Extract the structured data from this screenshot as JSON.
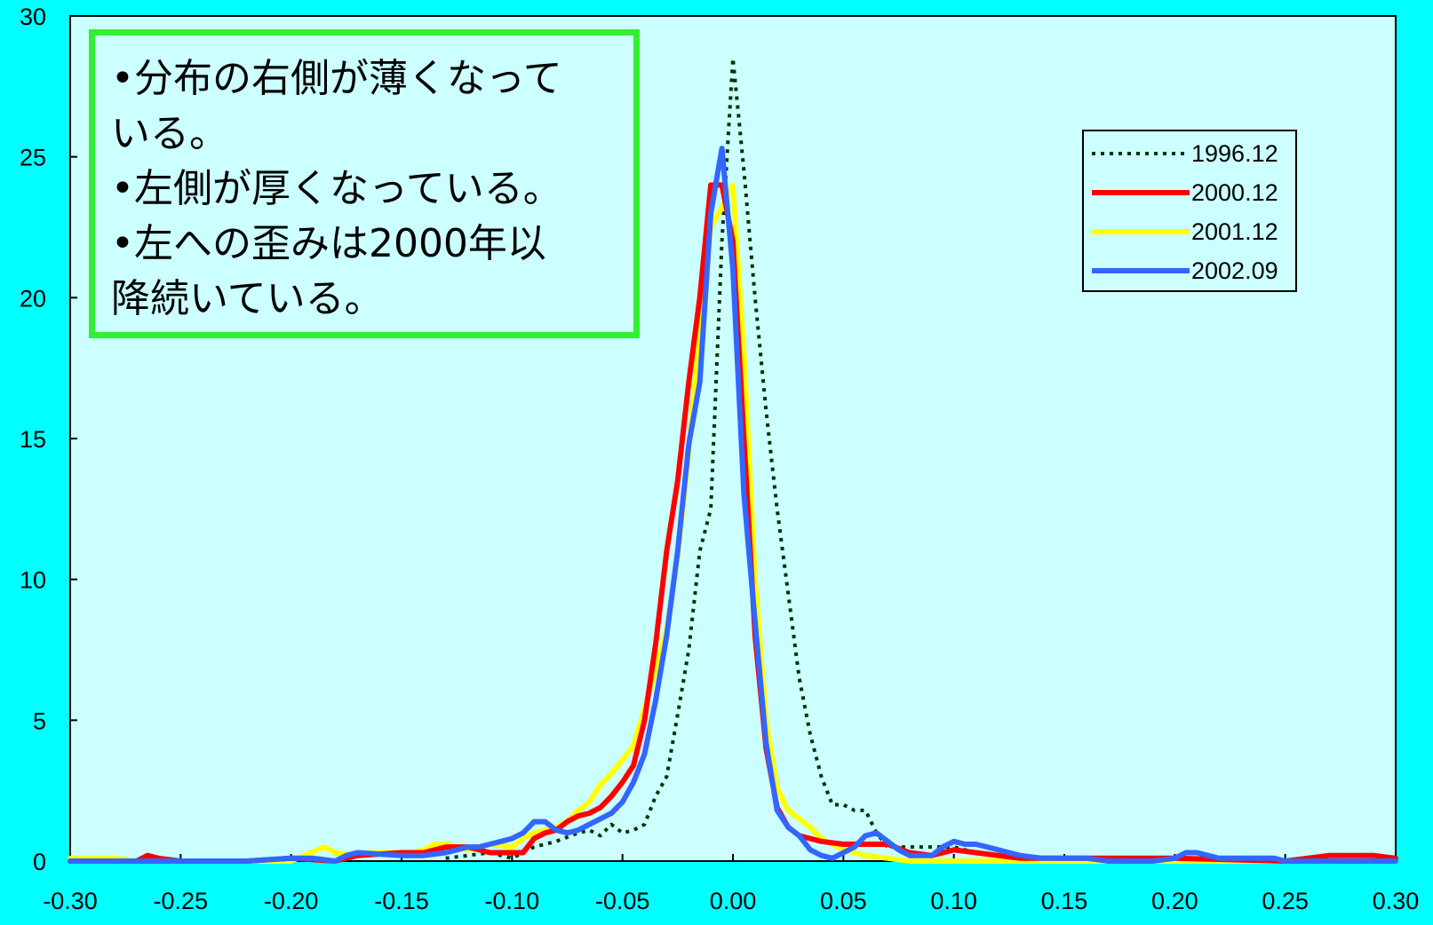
{
  "annotation": {
    "lines": [
      "•分布の右側が薄くなって",
      "いる。",
      "•左側が厚くなっている。",
      "•左への歪みは2000年以",
      "降続いている。"
    ],
    "border_color": "#33EE33"
  },
  "colors": {
    "background": "#00FFFF",
    "plot_area": "#CCFFFF"
  },
  "chart_data": {
    "type": "line",
    "title": "",
    "xlabel": "",
    "ylabel": "",
    "xlim": [
      -0.3,
      0.3
    ],
    "ylim": [
      0,
      30
    ],
    "x_ticks": [
      "-0.30",
      "-0.25",
      "-0.20",
      "-0.15",
      "-0.10",
      "-0.05",
      "0.00",
      "0.05",
      "0.10",
      "0.15",
      "0.20",
      "0.25",
      "0.30"
    ],
    "y_ticks": [
      "0",
      "5",
      "10",
      "15",
      "20",
      "25",
      "30"
    ],
    "grid": false,
    "legend_position": "top-right",
    "series": [
      {
        "name": "1996.12",
        "color": "#003300",
        "dash": "dotted",
        "x": [
          -0.13,
          -0.12,
          -0.11,
          -0.1,
          -0.09,
          -0.08,
          -0.07,
          -0.065,
          -0.06,
          -0.055,
          -0.05,
          -0.045,
          -0.04,
          -0.035,
          -0.03,
          -0.025,
          -0.02,
          -0.015,
          -0.01,
          -0.005,
          0.0,
          0.005,
          0.01,
          0.015,
          0.02,
          0.025,
          0.03,
          0.035,
          0.04,
          0.045,
          0.05,
          0.055,
          0.06,
          0.065,
          0.07,
          0.08,
          0.09,
          0.1,
          0.11,
          0.12,
          0.13,
          0.14,
          0.15,
          0.2
        ],
        "y": [
          0.1,
          0.2,
          0.3,
          0.1,
          0.5,
          0.7,
          1.0,
          1.1,
          0.9,
          1.3,
          1.0,
          1.1,
          1.3,
          2.3,
          3.0,
          5.2,
          7.5,
          11.0,
          12.5,
          22.0,
          28.5,
          24.5,
          20.0,
          16.0,
          12.5,
          9.5,
          6.5,
          4.5,
          3.0,
          2.0,
          2.0,
          1.8,
          1.8,
          1.0,
          0.5,
          0.5,
          0.5,
          0.5,
          0.3,
          0.2,
          0.1,
          0.1,
          0.0,
          0.0
        ]
      },
      {
        "name": "2000.12",
        "color": "#FF0000",
        "dash": "solid",
        "x": [
          -0.3,
          -0.27,
          -0.265,
          -0.26,
          -0.25,
          -0.22,
          -0.2,
          -0.18,
          -0.17,
          -0.15,
          -0.14,
          -0.13,
          -0.12,
          -0.11,
          -0.1,
          -0.095,
          -0.09,
          -0.085,
          -0.08,
          -0.075,
          -0.07,
          -0.065,
          -0.06,
          -0.055,
          -0.05,
          -0.045,
          -0.04,
          -0.035,
          -0.03,
          -0.025,
          -0.02,
          -0.015,
          -0.01,
          -0.005,
          0.0,
          0.005,
          0.01,
          0.015,
          0.02,
          0.025,
          0.03,
          0.035,
          0.04,
          0.05,
          0.06,
          0.07,
          0.08,
          0.09,
          0.1,
          0.11,
          0.12,
          0.13,
          0.15,
          0.2,
          0.25,
          0.27,
          0.29,
          0.3
        ],
        "y": [
          0,
          0,
          0.2,
          0.1,
          0,
          0,
          0.1,
          0,
          0.2,
          0.3,
          0.3,
          0.5,
          0.5,
          0.3,
          0.3,
          0.3,
          0.8,
          1.0,
          1.1,
          1.4,
          1.6,
          1.7,
          1.9,
          2.3,
          2.8,
          3.4,
          5.0,
          7.7,
          11.0,
          13.5,
          17.0,
          20.0,
          24.0,
          24.0,
          22.0,
          15.0,
          8.0,
          4.0,
          1.9,
          1.2,
          0.9,
          0.8,
          0.7,
          0.6,
          0.6,
          0.6,
          0.3,
          0.2,
          0.4,
          0.3,
          0.2,
          0.1,
          0.1,
          0.1,
          0,
          0.2,
          0.2,
          0.1
        ]
      },
      {
        "name": "2001.12",
        "color": "#FFFF00",
        "dash": "solid",
        "x": [
          -0.3,
          -0.28,
          -0.27,
          -0.25,
          -0.22,
          -0.2,
          -0.185,
          -0.18,
          -0.17,
          -0.165,
          -0.16,
          -0.155,
          -0.15,
          -0.145,
          -0.14,
          -0.135,
          -0.13,
          -0.125,
          -0.12,
          -0.11,
          -0.1,
          -0.095,
          -0.09,
          -0.085,
          -0.08,
          -0.075,
          -0.07,
          -0.065,
          -0.06,
          -0.055,
          -0.05,
          -0.045,
          -0.04,
          -0.035,
          -0.03,
          -0.025,
          -0.02,
          -0.015,
          -0.01,
          -0.005,
          0.0,
          0.005,
          0.01,
          0.015,
          0.02,
          0.025,
          0.03,
          0.035,
          0.04,
          0.05,
          0.06,
          0.07,
          0.08,
          0.1,
          0.15,
          0.2,
          0.25,
          0.3
        ],
        "y": [
          0.1,
          0.1,
          0,
          0,
          0,
          0,
          0.5,
          0.3,
          0.2,
          0.3,
          0.3,
          0.3,
          0.3,
          0.3,
          0.4,
          0.6,
          0.6,
          0.5,
          0.4,
          0.6,
          0.5,
          0.8,
          1.0,
          1.1,
          1.2,
          1.4,
          1.8,
          2.1,
          2.7,
          3.1,
          3.6,
          4.1,
          5.4,
          6.8,
          8.2,
          10.8,
          14.5,
          19.0,
          22.5,
          23.2,
          24.0,
          18.0,
          10.0,
          5.0,
          2.6,
          1.8,
          1.5,
          1.2,
          0.8,
          0.4,
          0.2,
          0.1,
          0,
          0,
          0,
          0,
          0,
          0
        ]
      },
      {
        "name": "2002.09",
        "color": "#3366FF",
        "dash": "solid",
        "x": [
          -0.3,
          -0.27,
          -0.25,
          -0.22,
          -0.2,
          -0.19,
          -0.18,
          -0.175,
          -0.17,
          -0.15,
          -0.14,
          -0.13,
          -0.125,
          -0.12,
          -0.115,
          -0.11,
          -0.105,
          -0.1,
          -0.095,
          -0.09,
          -0.085,
          -0.08,
          -0.075,
          -0.07,
          -0.065,
          -0.06,
          -0.055,
          -0.05,
          -0.045,
          -0.04,
          -0.035,
          -0.03,
          -0.025,
          -0.02,
          -0.015,
          -0.01,
          -0.005,
          0.0,
          0.005,
          0.01,
          0.015,
          0.02,
          0.025,
          0.03,
          0.035,
          0.04,
          0.045,
          0.05,
          0.055,
          0.06,
          0.065,
          0.07,
          0.075,
          0.08,
          0.09,
          0.095,
          0.1,
          0.105,
          0.11,
          0.115,
          0.12,
          0.125,
          0.13,
          0.14,
          0.15,
          0.16,
          0.17,
          0.18,
          0.19,
          0.2,
          0.205,
          0.21,
          0.215,
          0.22,
          0.225,
          0.23,
          0.235,
          0.24,
          0.245,
          0.25,
          0.3
        ],
        "y": [
          0,
          0,
          0,
          0,
          0.1,
          0.1,
          0.0,
          0.2,
          0.3,
          0.2,
          0.2,
          0.3,
          0.4,
          0.5,
          0.5,
          0.6,
          0.7,
          0.8,
          1.0,
          1.4,
          1.4,
          1.1,
          1.0,
          1.1,
          1.3,
          1.5,
          1.7,
          2.1,
          2.8,
          3.8,
          5.7,
          8.0,
          11.0,
          14.8,
          17.0,
          23.0,
          25.3,
          21.0,
          13.0,
          8.5,
          4.2,
          1.8,
          1.2,
          0.9,
          0.4,
          0.2,
          0.1,
          0.3,
          0.5,
          0.9,
          1.0,
          0.7,
          0.4,
          0.2,
          0.2,
          0.5,
          0.7,
          0.6,
          0.6,
          0.5,
          0.4,
          0.3,
          0.2,
          0.1,
          0.1,
          0.1,
          0.0,
          0.0,
          0.0,
          0.1,
          0.3,
          0.3,
          0.2,
          0.1,
          0.1,
          0.1,
          0.1,
          0.1,
          0.1,
          0.0,
          0.0
        ]
      }
    ]
  }
}
